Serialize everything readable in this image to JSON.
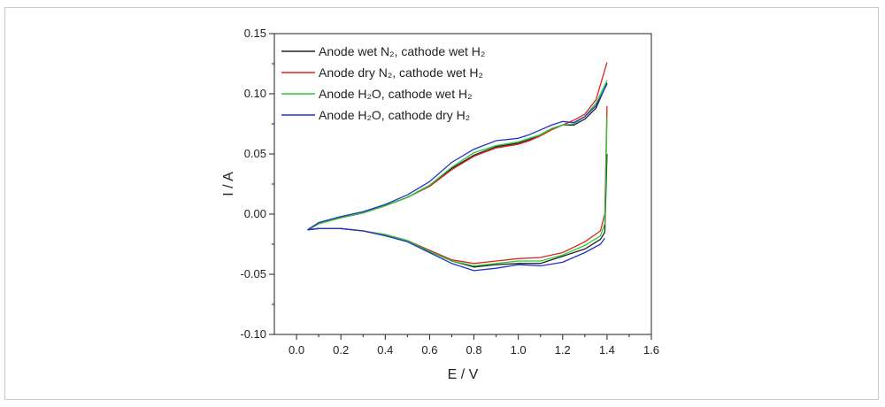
{
  "chart_data": {
    "type": "line",
    "title": "",
    "xlabel": "E / V",
    "ylabel": "I / A",
    "xlim": [
      -0.1,
      1.6
    ],
    "ylim": [
      -0.1,
      0.15
    ],
    "x_ticks": [
      "0.0",
      "0.2",
      "0.4",
      "0.6",
      "0.8",
      "1.0",
      "1.2",
      "1.4",
      "1.6"
    ],
    "y_ticks": [
      "-0.10",
      "-0.05",
      "0.00",
      "0.05",
      "0.10",
      "0.15"
    ],
    "x_tick_values": [
      0,
      0.2,
      0.4,
      0.6,
      0.8,
      1.0,
      1.2,
      1.4,
      1.6
    ],
    "y_tick_values": [
      -0.1,
      -0.05,
      0,
      0.05,
      0.1,
      0.15
    ],
    "grid": false,
    "legend_position": "top-left",
    "series": [
      {
        "name": "Anode wet N₂, cathode wet H₂",
        "color": "#222222",
        "anodic": [
          [
            0.05,
            -0.013
          ],
          [
            0.1,
            -0.008
          ],
          [
            0.2,
            -0.003
          ],
          [
            0.3,
            0.001
          ],
          [
            0.4,
            0.007
          ],
          [
            0.5,
            0.014
          ],
          [
            0.6,
            0.024
          ],
          [
            0.7,
            0.038
          ],
          [
            0.8,
            0.049
          ],
          [
            0.9,
            0.056
          ],
          [
            1.0,
            0.059
          ],
          [
            1.05,
            0.062
          ],
          [
            1.1,
            0.066
          ],
          [
            1.15,
            0.071
          ],
          [
            1.2,
            0.074
          ],
          [
            1.25,
            0.074
          ],
          [
            1.3,
            0.079
          ],
          [
            1.35,
            0.088
          ],
          [
            1.4,
            0.109
          ]
        ],
        "cathodic": [
          [
            1.4,
            0.05
          ],
          [
            1.39,
            -0.015
          ],
          [
            1.37,
            -0.021
          ],
          [
            1.3,
            -0.029
          ],
          [
            1.2,
            -0.035
          ],
          [
            1.1,
            -0.041
          ],
          [
            1.0,
            -0.041
          ],
          [
            0.9,
            -0.042
          ],
          [
            0.8,
            -0.044
          ],
          [
            0.7,
            -0.039
          ],
          [
            0.6,
            -0.031
          ],
          [
            0.5,
            -0.022
          ],
          [
            0.4,
            -0.017
          ],
          [
            0.3,
            -0.014
          ],
          [
            0.2,
            -0.012
          ],
          [
            0.1,
            -0.012
          ],
          [
            0.05,
            -0.013
          ]
        ]
      },
      {
        "name": "Anode dry N₂, cathode wet H₂",
        "color": "#dd2222",
        "anodic": [
          [
            0.05,
            -0.013
          ],
          [
            0.1,
            -0.008
          ],
          [
            0.2,
            -0.003
          ],
          [
            0.3,
            0.001
          ],
          [
            0.4,
            0.007
          ],
          [
            0.5,
            0.014
          ],
          [
            0.6,
            0.023
          ],
          [
            0.7,
            0.037
          ],
          [
            0.8,
            0.048
          ],
          [
            0.9,
            0.055
          ],
          [
            1.0,
            0.058
          ],
          [
            1.05,
            0.061
          ],
          [
            1.1,
            0.065
          ],
          [
            1.15,
            0.07
          ],
          [
            1.2,
            0.074
          ],
          [
            1.25,
            0.078
          ],
          [
            1.3,
            0.083
          ],
          [
            1.35,
            0.095
          ],
          [
            1.4,
            0.126
          ]
        ],
        "cathodic": [
          [
            1.4,
            0.09
          ],
          [
            1.39,
            0.0
          ],
          [
            1.37,
            -0.014
          ],
          [
            1.3,
            -0.023
          ],
          [
            1.2,
            -0.032
          ],
          [
            1.1,
            -0.036
          ],
          [
            1.0,
            -0.037
          ],
          [
            0.9,
            -0.039
          ],
          [
            0.8,
            -0.041
          ],
          [
            0.7,
            -0.038
          ],
          [
            0.6,
            -0.03
          ],
          [
            0.5,
            -0.022
          ],
          [
            0.4,
            -0.017
          ],
          [
            0.3,
            -0.014
          ],
          [
            0.2,
            -0.012
          ],
          [
            0.1,
            -0.012
          ],
          [
            0.05,
            -0.013
          ]
        ]
      },
      {
        "name": "Anode H₂O, cathode wet H₂",
        "color": "#22cc33",
        "anodic": [
          [
            0.05,
            -0.013
          ],
          [
            0.1,
            -0.008
          ],
          [
            0.2,
            -0.003
          ],
          [
            0.3,
            0.001
          ],
          [
            0.4,
            0.007
          ],
          [
            0.5,
            0.014
          ],
          [
            0.6,
            0.024
          ],
          [
            0.7,
            0.039
          ],
          [
            0.8,
            0.051
          ],
          [
            0.9,
            0.057
          ],
          [
            1.0,
            0.06
          ],
          [
            1.05,
            0.063
          ],
          [
            1.1,
            0.066
          ],
          [
            1.15,
            0.071
          ],
          [
            1.2,
            0.074
          ],
          [
            1.25,
            0.075
          ],
          [
            1.3,
            0.081
          ],
          [
            1.35,
            0.092
          ],
          [
            1.4,
            0.111
          ]
        ],
        "cathodic": [
          [
            1.4,
            0.08
          ],
          [
            1.39,
            -0.008
          ],
          [
            1.37,
            -0.018
          ],
          [
            1.3,
            -0.026
          ],
          [
            1.2,
            -0.034
          ],
          [
            1.1,
            -0.039
          ],
          [
            1.0,
            -0.039
          ],
          [
            0.9,
            -0.041
          ],
          [
            0.8,
            -0.043
          ],
          [
            0.7,
            -0.039
          ],
          [
            0.6,
            -0.031
          ],
          [
            0.5,
            -0.022
          ],
          [
            0.4,
            -0.017
          ],
          [
            0.3,
            -0.014
          ],
          [
            0.2,
            -0.012
          ],
          [
            0.1,
            -0.012
          ],
          [
            0.05,
            -0.013
          ]
        ]
      },
      {
        "name": "Anode H₂O, cathode dry H₂",
        "color": "#2233cc",
        "anodic": [
          [
            0.05,
            -0.013
          ],
          [
            0.1,
            -0.007
          ],
          [
            0.2,
            -0.002
          ],
          [
            0.3,
            0.002
          ],
          [
            0.4,
            0.008
          ],
          [
            0.5,
            0.016
          ],
          [
            0.6,
            0.027
          ],
          [
            0.7,
            0.043
          ],
          [
            0.8,
            0.054
          ],
          [
            0.9,
            0.061
          ],
          [
            1.0,
            0.063
          ],
          [
            1.05,
            0.066
          ],
          [
            1.1,
            0.07
          ],
          [
            1.15,
            0.074
          ],
          [
            1.2,
            0.077
          ],
          [
            1.25,
            0.076
          ],
          [
            1.3,
            0.081
          ],
          [
            1.35,
            0.09
          ],
          [
            1.4,
            0.108
          ]
        ],
        "cathodic": [
          [
            1.39,
            -0.02
          ],
          [
            1.37,
            -0.025
          ],
          [
            1.3,
            -0.032
          ],
          [
            1.2,
            -0.04
          ],
          [
            1.1,
            -0.043
          ],
          [
            1.0,
            -0.042
          ],
          [
            0.9,
            -0.045
          ],
          [
            0.8,
            -0.047
          ],
          [
            0.7,
            -0.041
          ],
          [
            0.6,
            -0.032
          ],
          [
            0.5,
            -0.023
          ],
          [
            0.4,
            -0.018
          ],
          [
            0.3,
            -0.014
          ],
          [
            0.2,
            -0.012
          ],
          [
            0.1,
            -0.012
          ],
          [
            0.05,
            -0.013
          ]
        ]
      }
    ]
  }
}
